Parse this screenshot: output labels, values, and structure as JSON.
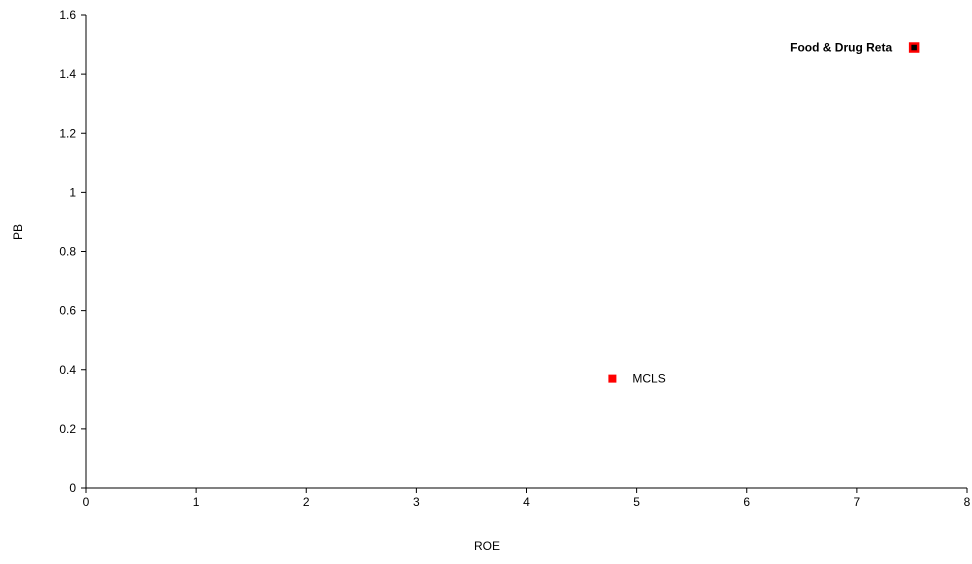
{
  "chart_data": {
    "type": "scatter",
    "title": "",
    "xlabel": "ROE",
    "ylabel": "PB",
    "xlim": [
      0,
      8
    ],
    "ylim": [
      0,
      1.6
    ],
    "x_ticks": [
      0,
      1,
      2,
      3,
      4,
      5,
      6,
      7,
      8
    ],
    "y_ticks": [
      0,
      0.2,
      0.4,
      0.6,
      0.8,
      1,
      1.2,
      1.4,
      1.6
    ],
    "grid": false,
    "points": [
      {
        "label": "MCLS",
        "x": 4.78,
        "y": 0.37,
        "fill": "#ff0000",
        "stroke": "#ff0000",
        "label_bold": false,
        "label_side": "right"
      },
      {
        "label": "Food & Drug Reta",
        "x": 7.52,
        "y": 1.49,
        "fill": "#000000",
        "stroke": "#ff0000",
        "label_bold": true,
        "label_side": "left"
      }
    ]
  }
}
